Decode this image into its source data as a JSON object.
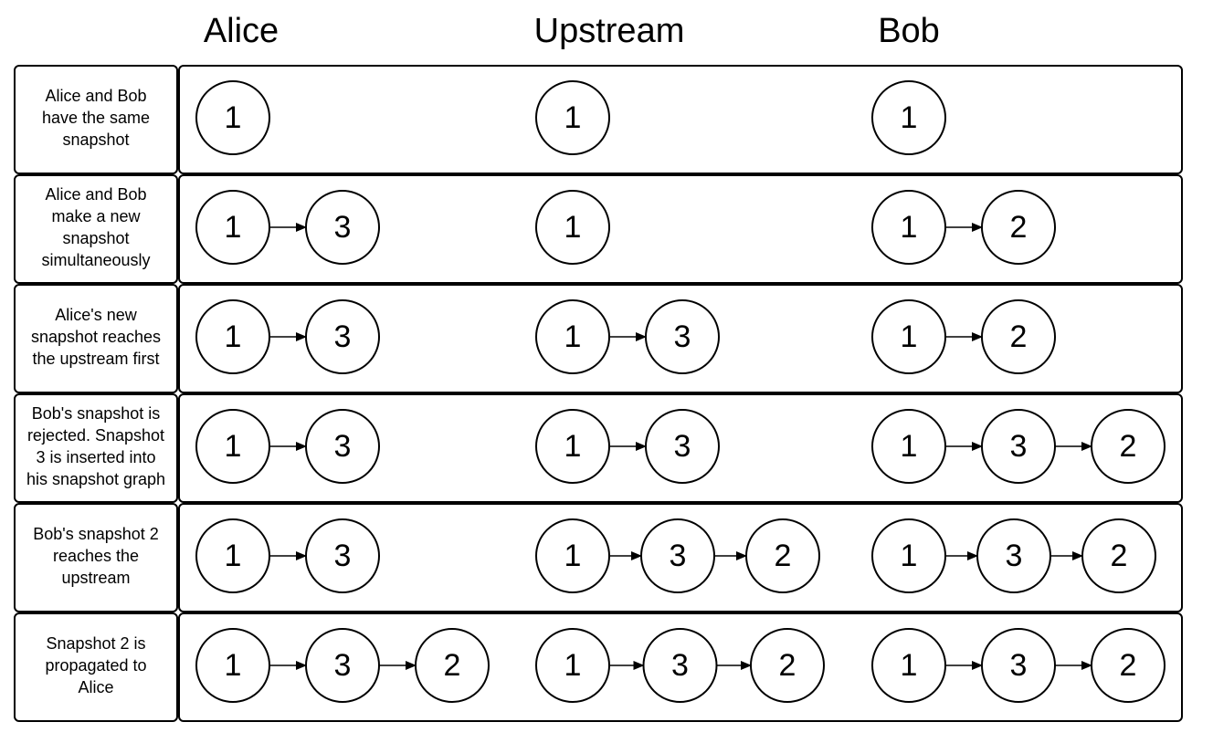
{
  "columns": [
    {
      "id": "alice",
      "title": "Alice"
    },
    {
      "id": "upstream",
      "title": "Upstream"
    },
    {
      "id": "bob",
      "title": "Bob"
    }
  ],
  "rows": [
    {
      "label": [
        "Alice and Bob",
        "have the same",
        "snapshot"
      ],
      "alice": [
        "1"
      ],
      "upstream": [
        "1"
      ],
      "bob": [
        "1"
      ]
    },
    {
      "label": [
        "Alice and Bob",
        "make a new",
        "snapshot",
        "simultaneously"
      ],
      "alice": [
        "1",
        "3"
      ],
      "upstream": [
        "1"
      ],
      "bob": [
        "1",
        "2"
      ]
    },
    {
      "label": [
        "Alice's new",
        "snapshot reaches",
        "the upstream first"
      ],
      "alice": [
        "1",
        "3"
      ],
      "upstream": [
        "1",
        "3"
      ],
      "bob": [
        "1",
        "2"
      ]
    },
    {
      "label": [
        "Bob's snapshot is",
        "rejected. Snapshot",
        "3 is inserted into",
        "his snapshot graph"
      ],
      "alice": [
        "1",
        "3"
      ],
      "upstream": [
        "1",
        "3"
      ],
      "bob": [
        "1",
        "3",
        "2"
      ]
    },
    {
      "label": [
        "Bob's snapshot 2",
        "reaches the",
        "upstream"
      ],
      "alice": [
        "1",
        "3"
      ],
      "upstream": [
        "1",
        "3",
        "2"
      ],
      "bob": [
        "1",
        "3",
        "2"
      ]
    },
    {
      "label": [
        "Snapshot 2 is",
        "propagated to",
        "Alice"
      ],
      "alice": [
        "1",
        "3",
        "2"
      ],
      "upstream": [
        "1",
        "3",
        "2"
      ],
      "bob": [
        "1",
        "3",
        "2"
      ]
    }
  ]
}
